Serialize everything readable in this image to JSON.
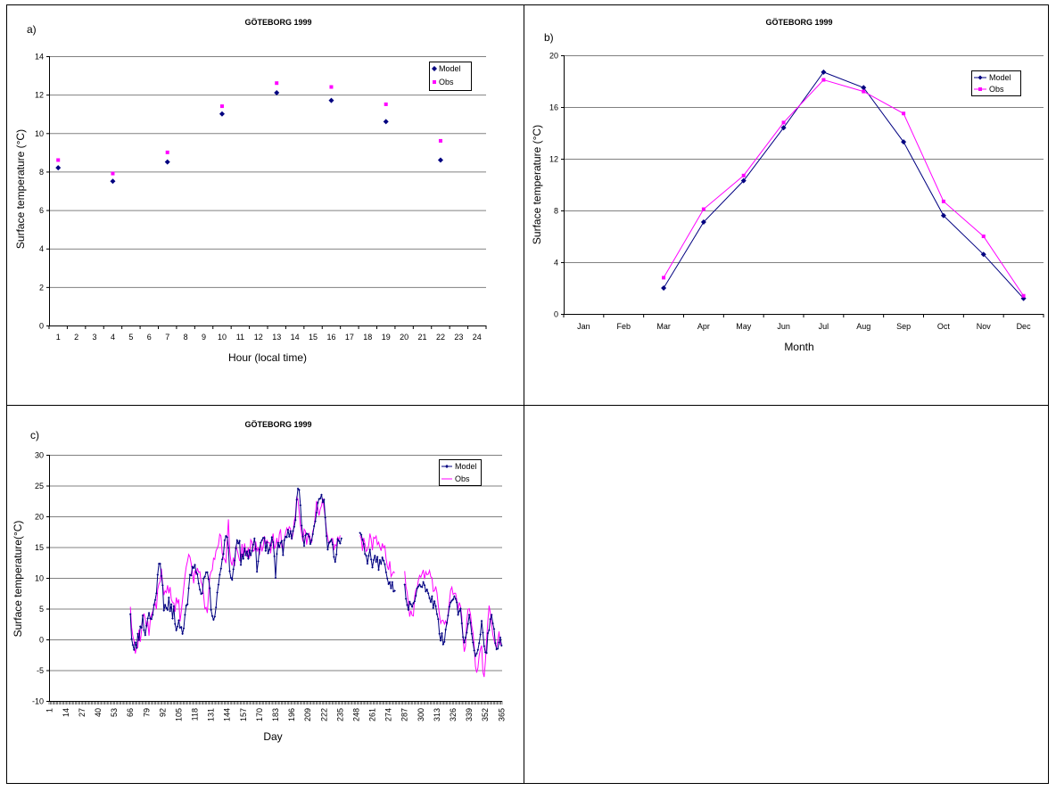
{
  "panels": [
    {
      "label": "a)",
      "title": "GÖTEBORG 1999"
    },
    {
      "label": "b)",
      "title": "GÖTEBORG 1999"
    },
    {
      "label": "c)",
      "title": "GÖTEBORG 1999"
    }
  ],
  "colors": {
    "model": "#000080",
    "obs": "#ff00ff",
    "grid": "#808080"
  },
  "chart_data": [
    {
      "type": "scatter",
      "title": "GÖTEBORG 1999",
      "xlabel": "Hour (local time)",
      "ylabel": "Surface temperature (°C)",
      "ylim": [
        0,
        14
      ],
      "yticks": [
        "0",
        "2",
        "4",
        "6",
        "8",
        "10",
        "12",
        "14"
      ],
      "categories": [
        "1",
        "2",
        "3",
        "4",
        "5",
        "6",
        "7",
        "8",
        "9",
        "10",
        "11",
        "12",
        "13",
        "14",
        "15",
        "16",
        "17",
        "18",
        "19",
        "20",
        "21",
        "22",
        "23",
        "24"
      ],
      "legend": [
        "Model",
        "Obs"
      ],
      "legend_position": "top-right",
      "grid": true,
      "series": [
        {
          "name": "Model",
          "x": [
            1,
            4,
            7,
            10,
            13,
            16,
            19,
            22
          ],
          "values": [
            8.2,
            7.5,
            8.5,
            11.0,
            12.1,
            11.7,
            10.6,
            8.6
          ]
        },
        {
          "name": "Obs",
          "x": [
            1,
            4,
            7,
            10,
            13,
            16,
            19,
            22
          ],
          "values": [
            8.6,
            7.9,
            9.0,
            11.4,
            12.6,
            12.4,
            11.5,
            9.6
          ]
        }
      ]
    },
    {
      "type": "line",
      "title": "GÖTEBORG 1999",
      "xlabel": "Month",
      "ylabel": "Surface temperature (°C)",
      "ylim": [
        0,
        20
      ],
      "yticks": [
        "0",
        "4",
        "8",
        "12",
        "16",
        "20"
      ],
      "categories": [
        "Jan",
        "Feb",
        "Mar",
        "Apr",
        "May",
        "Jun",
        "Jul",
        "Aug",
        "Sep",
        "Oct",
        "Nov",
        "Dec"
      ],
      "legend": [
        "Model",
        "Obs"
      ],
      "legend_position": "top-right",
      "grid": true,
      "series": [
        {
          "name": "Model",
          "values": [
            null,
            null,
            2.0,
            7.1,
            10.3,
            14.4,
            18.7,
            17.5,
            13.3,
            7.6,
            4.6,
            1.2
          ]
        },
        {
          "name": "Obs",
          "values": [
            null,
            null,
            2.8,
            8.1,
            10.7,
            14.8,
            18.1,
            17.2,
            15.5,
            8.7,
            6.0,
            1.4
          ]
        }
      ]
    },
    {
      "type": "line",
      "title": "GÖTEBORG 1999",
      "xlabel": "Day",
      "ylabel": "Surface temperature(°C)",
      "ylim": [
        -10,
        30
      ],
      "yticks": [
        "-10",
        "-5",
        "0",
        "5",
        "10",
        "15",
        "20",
        "25",
        "30"
      ],
      "xticks": [
        "1",
        "14",
        "27",
        "40",
        "53",
        "66",
        "79",
        "92",
        "105",
        "118",
        "131",
        "144",
        "157",
        "170",
        "183",
        "196",
        "209",
        "222",
        "235",
        "248",
        "261",
        "274",
        "287",
        "300",
        "313",
        "326",
        "339",
        "352",
        "365"
      ],
      "legend": [
        "Model",
        "Obs"
      ],
      "legend_position": "top-right",
      "grid": true,
      "series": [
        {
          "name": "Model",
          "segments": [
            {
              "x0": 66,
              "values": [
                4.1,
                0.1,
                -0.9,
                -1.7,
                -0.5,
                -1.4,
                0.9,
                -0.1,
                2.1,
                1.9,
                3.9,
                1.5,
                0.7,
                2.2,
                3.4,
                4.3,
                3.4,
                3.3,
                4.0,
                5.6,
                6.4,
                7.5,
                10.5,
                12.3,
                12.3,
                10.3,
                8.8,
                4.7,
                5.6,
                5.1,
                4.8,
                6.8,
                4.6,
                5.7,
                3.4,
                5.4,
                2.5,
                1.5,
                2.1,
                3.1,
                1.9,
                2.0,
                0.9,
                1.8,
                4.0,
                5.5,
                5.7,
                8.3,
                10.5,
                10.4,
                11.8,
                11.6,
                12.1,
                10.9,
                10.6,
                9.1,
                8.1,
                7.4,
                7.5,
                9.9,
                10.2,
                10.9,
                10.9,
                9.8,
                8.3,
                4.8,
                3.8,
                3.2,
                3.7,
                5.2,
                7.6,
                8.9,
                10.5,
                11.5,
                13.0,
                13.9,
                16.1,
                16.8,
                16.6,
                14.9,
                11.1,
                10.0,
                9.7,
                11.4,
                12.8,
                14.8,
                16.1,
                15.6,
                16.0,
                12.1,
                13.8,
                13.1,
                14.8,
                13.7,
                14.3,
                13.1,
                14.5,
                13.7,
                14.4,
                15.4,
                16.4,
                14.7,
                11.0,
                12.7,
                14.6,
                15.7,
                16.1,
                16.5,
                16.5,
                14.4,
                15.8,
                14.0,
                14.6,
                15.3,
                16.6,
                15.8,
                13.5,
                10.0,
                13.9,
                15.7,
                15.0,
                15.7,
                16.0,
                13.7,
                16.1,
                16.7,
                16.6,
                17.8,
                16.7,
                17.6,
                16.4,
                17.6,
                18.3,
                19.4,
                22.7,
                24.5,
                24.3,
                21.8,
                18.5,
                16.7,
                15.2,
                16.9,
                17.2,
                17.1,
                16.7,
                15.5,
                16.1,
                17.1,
                18.4,
                19.2,
                20.6,
                22.2,
                22.8,
                22.9,
                23.5,
                22.3,
                22.7,
                19.8,
                16.8,
                14.6,
                15.7,
                15.9,
                16.2,
                15.4,
                13.4,
                12.6,
                13.8,
                16.3,
                16.0,
                15.6,
                16.4
              ]
            },
            {
              "x0": 251,
              "values": [
                17.3,
                17.0,
                16.2,
                15.5,
                13.9,
                13.6,
                12.3,
                13.6,
                14.6,
                13.0,
                11.7,
                12.9,
                13.6,
                12.6,
                13.4,
                11.3,
                12.9,
                12.3,
                13.3,
                12.8,
                12.2,
                10.9,
                9.9,
                9.0,
                9.3,
                8.3,
                9.3,
                7.8,
                7.9
              ]
            },
            {
              "x0": 287,
              "values": [
                8.9,
                6.6,
                5.6,
                4.8,
                6.1,
                5.7,
                5.3,
                5.9,
                6.2,
                7.1,
                8.3,
                8.6,
                8.9,
                8.6,
                8.5,
                9.3,
                8.8,
                7.8,
                8.1,
                7.5,
                6.7,
                6.1,
                7.0,
                5.1,
                6.2,
                5.4,
                4.1,
                3.3,
                0.9,
                -0.2,
                1.0,
                -0.8,
                -0.4,
                1.6,
                2.7,
                3.9,
                5.3,
                6.0,
                6.3,
                6.5,
                7.0,
                6.6,
                6.0,
                4.0,
                4.6,
                5.0,
                2.6,
                0.4,
                -0.5,
                0.3,
                1.1,
                2.5,
                4.0,
                2.7,
                0.9,
                -0.5,
                -1.8,
                -2.7,
                -2.3,
                -1.7,
                -0.6,
                0.8,
                3.0,
                1.1,
                -1.1,
                -2.1,
                -2.2,
                1.0,
                1.5,
                3.3,
                4.0,
                2.6,
                1.7,
                -0.6,
                -1.6,
                -1.5,
                -0.5,
                0.3,
                -1.0
              ]
            }
          ]
        },
        {
          "name": "Obs",
          "segments": [
            {
              "x0": 66,
              "values": [
                5.3,
                2.0,
                0.5,
                -0.3,
                -2.3,
                -1.3,
                -1.3,
                1.6,
                -0.4,
                1.4,
                3.5,
                4.2,
                3.3,
                1.9,
                3.0,
                0.6,
                3.0,
                4.0,
                4.5,
                5.4,
                5.9,
                4.9,
                8.1,
                9.0,
                9.4,
                11.5,
                9.0,
                7.2,
                7.9,
                7.6,
                8.8,
                7.5,
                8.5,
                6.5,
                6.0,
                5.9,
                4.5,
                6.8,
                5.9,
                6.5,
                2.9,
                4.5,
                6.4,
                8.4,
                10.3,
                11.8,
                12.7,
                13.8,
                13.4,
                12.3,
                11.0,
                9.1,
                11.2,
                10.5,
                11.6,
                10.9,
                11.0,
                9.3,
                8.8,
                7.2,
                5.0,
                5.2,
                4.3,
                7.4,
                10.3,
                11.0,
                11.3,
                13.2,
                13.0,
                14.4,
                14.8,
                15.4,
                17.1,
                16.8,
                14.0,
                13.2,
                13.0,
                12.4,
                16.1,
                19.5,
                14.4,
                12.7,
                12.0,
                13.3,
                11.9,
                15.2,
                14.6,
                13.7,
                12.8,
                12.8,
                15.5,
                13.3,
                15.6,
                14.1,
                13.4,
                15.0,
                13.2,
                16.2,
                15.8,
                14.3,
                14.5,
                15.9,
                14.4,
                14.9,
                13.7,
                15.6,
                14.3,
                15.1,
                16.8,
                15.5,
                16.1,
                15.7,
                15.7,
                14.0,
                16.1,
                17.2,
                14.7,
                15.2,
                16.5,
                14.8,
                17.1,
                17.9,
                15.0,
                14.7,
                16.1,
                17.3,
                18.1,
                17.6,
                18.3,
                18.0,
                16.2,
                17.1,
                19.2,
                20.2,
                23.1,
                22.8,
                20.7,
                18.5,
                17.2,
                15.9,
                17.9,
                17.6,
                15.4,
                16.8,
                17.2,
                16.3,
                15.7,
                17.6,
                18.2,
                20.1,
                22.5,
                21.4,
                20.1,
                21.2,
                21.7,
                22.9,
                21.3,
                19.8,
                17.6,
                16.6,
                15.5,
                15.8,
                16.4,
                16.4,
                14.5,
                15.4,
                15.2,
                16.7,
                16.1,
                16.9
              ]
            },
            {
              "x0": 251,
              "values": [
                16.9,
                16.4,
                14.4,
                16.5,
                15.5,
                14.3,
                14.6,
                15.3,
                17.2,
                16.3,
                14.5,
                16.6,
                16.4,
                16.8,
                15.4,
                15.8,
                15.0,
                14.4,
                15.6,
                14.9,
                15.2,
                13.1,
                11.9,
                11.3,
                12.7,
                10.2,
                10.6,
                11.0,
                10.8
              ]
            },
            {
              "x0": 287,
              "values": [
                11.1,
                8.6,
                7.6,
                5.8,
                3.7,
                4.7,
                3.9,
                3.8,
                6.9,
                8.1,
                8.2,
                9.6,
                10.4,
                10.1,
                10.7,
                11.3,
                9.8,
                11.0,
                10.5,
                10.6,
                11.2,
                10.2,
                10.0,
                7.8,
                7.9,
                8.6,
                7.6,
                5.6,
                4.0,
                2.6,
                3.1,
                3.1,
                2.5,
                3.0,
                2.3,
                4.2,
                6.1,
                8.0,
                8.5,
                7.3,
                7.5,
                7.5,
                6.4,
                4.8,
                6.0,
                5.4,
                3.7,
                0.0,
                -2.0,
                -1.1,
                3.0,
                4.9,
                5.0,
                4.1,
                2.2,
                1.1,
                -1.1,
                -4.4,
                -5.4,
                -4.6,
                -2.6,
                -1.6,
                -1.0,
                -5.3,
                -6.1,
                -3.6,
                0.0,
                3.0,
                5.5,
                4.3,
                2.5,
                0.8,
                -0.1,
                -0.9,
                -1.3,
                -0.2,
                1.3,
                -0.8,
                -0.6
              ]
            }
          ]
        }
      ]
    }
  ]
}
